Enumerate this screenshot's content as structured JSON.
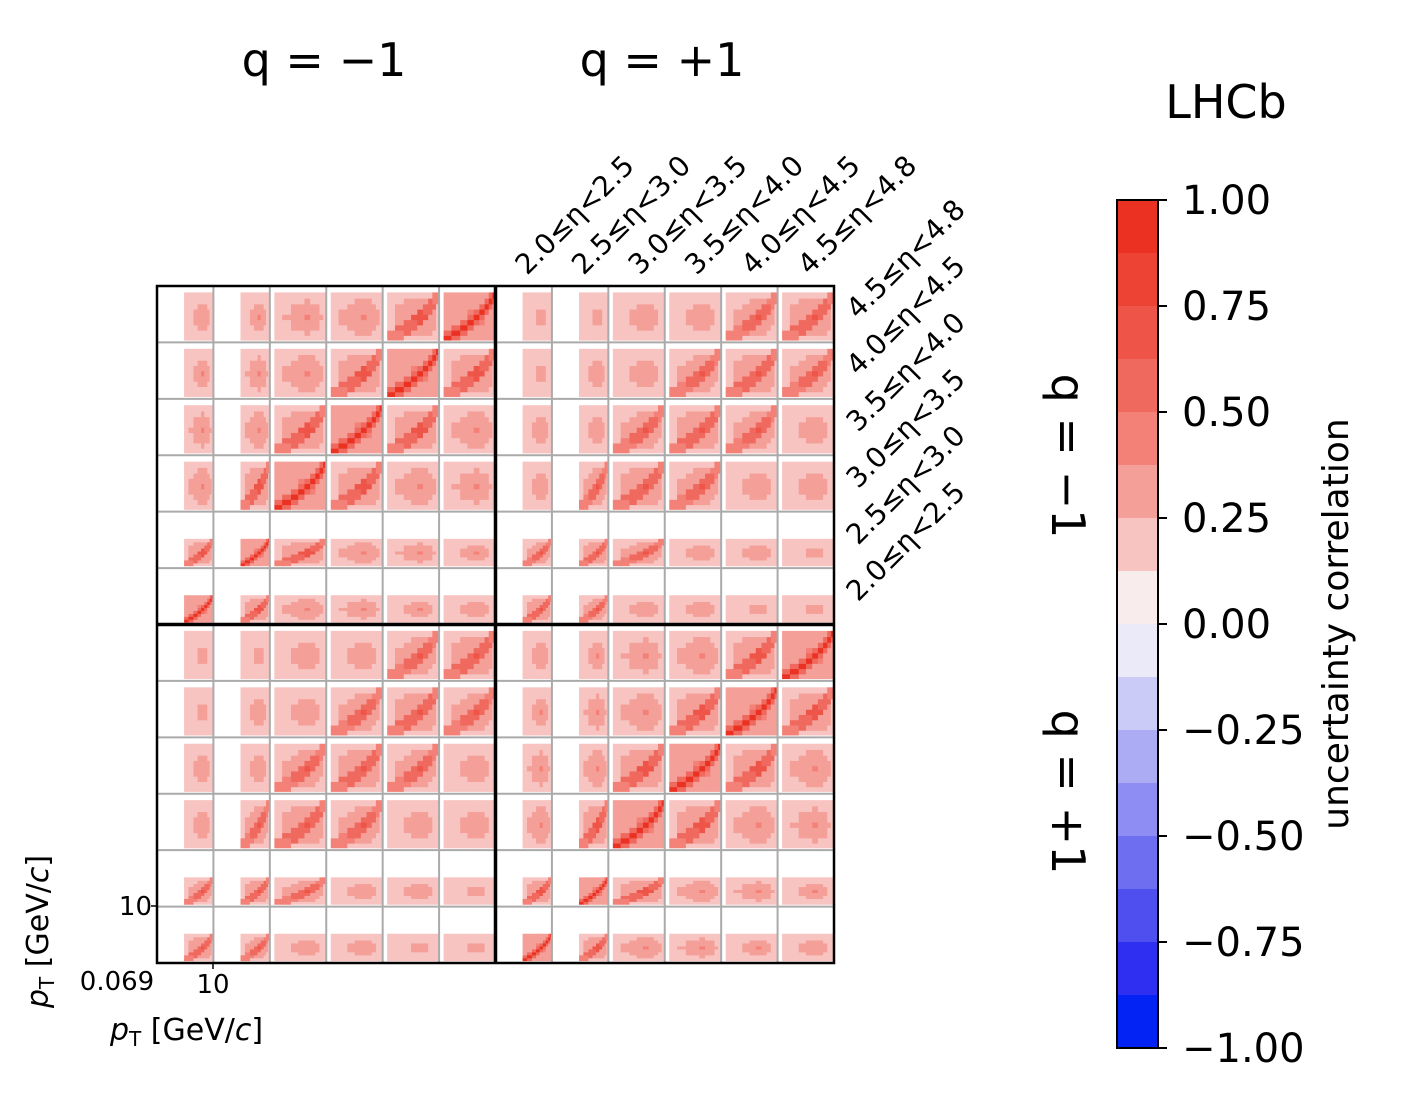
{
  "chart_data": {
    "type": "heatmap",
    "title": "LHCb",
    "group_titles": {
      "col_neg": "q = −1",
      "col_pos": "q = +1"
    },
    "row_titles": {
      "row_neg": "q = −1",
      "row_pos": "q = +1"
    },
    "eta_bins": [
      "2.0≤η<2.5",
      "2.5≤η<3.0",
      "3.0≤η<3.5",
      "3.5≤η<4.0",
      "4.0≤η<4.5",
      "4.5≤η<4.8"
    ],
    "eta_bins_rows_top_to_bottom": [
      "4.5≤η<4.8",
      "4.0≤η<4.5",
      "3.5≤η<4.0",
      "3.0≤η<3.5",
      "2.5≤η<3.0",
      "2.0≤η<2.5"
    ],
    "xlabel": "pT [GeV/c]",
    "ylabel": "pT [GeV/c]",
    "x_tick_labels": [
      "0.069",
      "10"
    ],
    "y_tick_labels": [
      "10"
    ],
    "colorbar": {
      "label": "uncertainty correlation",
      "range": [
        -1.0,
        1.0
      ],
      "ticks": [
        "1.00",
        "0.75",
        "0.50",
        "0.25",
        "0.00",
        "−0.25",
        "−0.50",
        "−0.75",
        "−1.00"
      ],
      "tick_values": [
        1.0,
        0.75,
        0.5,
        0.25,
        0.0,
        -0.25,
        -0.5,
        -0.75,
        -1.0
      ],
      "n_levels": 16,
      "colors": [
        "#eb3122",
        "#ec4334",
        "#ee5548",
        "#f0695e",
        "#f38177",
        "#f49f98",
        "#f7c4c1",
        "#f9eced",
        "#eaeaf9",
        "#cbcbf7",
        "#acacf5",
        "#8d8df3",
        "#6e6ef1",
        "#4f4ff0",
        "#2f2ff1",
        "#0223f3"
      ]
    },
    "value_estimates": {
      "diagonal_same_bin": 1.0,
      "adjacent_pt_bins": 0.6,
      "generic_same_charge": 0.35,
      "background_low": 0.1
    }
  }
}
